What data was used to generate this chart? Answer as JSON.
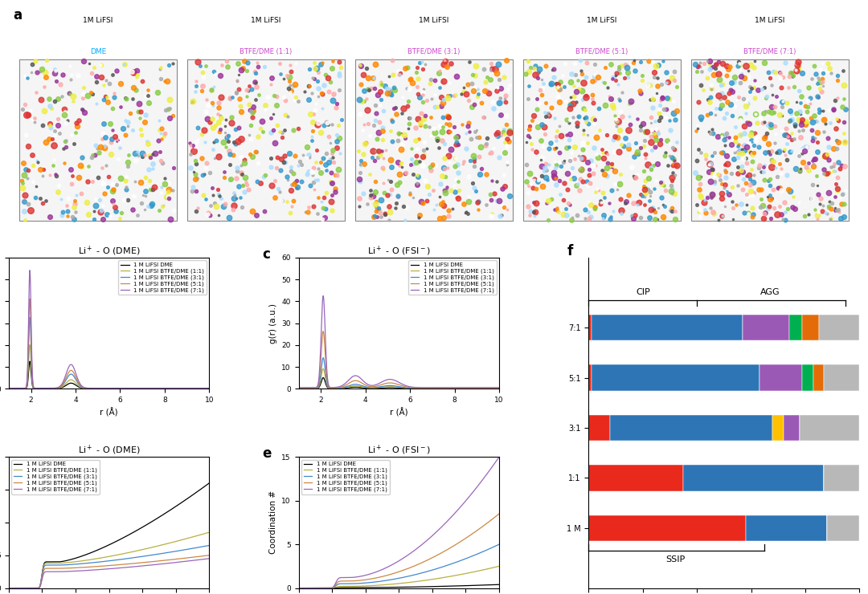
{
  "line_colors": [
    "#000000",
    "#b8b040",
    "#4488cc",
    "#cc8844",
    "#9966bb"
  ],
  "line_labels": [
    "1 M LiFSI DME",
    "1 M LiFSI BTFE/DME (1:1)",
    "1 M LiFSI BTFE/DME (3:1)",
    "1 M LiFSI BTFE/DME (5:1)",
    "1 M LiFSI BTFE/DME (7:1)"
  ],
  "dme_color": "#00aaff",
  "btfe_color": "#cc44cc",
  "bar_categories": [
    "7:1",
    "5:1",
    "3:1",
    "1:1",
    "1 M"
  ],
  "bar_data": {
    "3-0-0": [
      1,
      1,
      8,
      35,
      58
    ],
    "2-1-0": [
      56,
      62,
      60,
      52,
      30
    ],
    "2-2-0": [
      0,
      0,
      4,
      0,
      0
    ],
    "1-3-0": [
      17,
      16,
      6,
      0,
      0
    ],
    "0-4-0": [
      5,
      4,
      0,
      0,
      0
    ],
    "0-5-0": [
      6,
      4,
      0,
      0,
      0
    ],
    "Other": [
      15,
      13,
      22,
      13,
      12
    ]
  },
  "bar_colors": {
    "3-0-0": "#e8291c",
    "2-1-0": "#2e75b6",
    "2-2-0": "#ffc000",
    "1-3-0": "#9b59b6",
    "0-4-0": "#00b050",
    "0-5-0": "#e36c09",
    "Other": "#b8b8b8"
  },
  "label_colors": {
    "3-0-0": "#e8291c",
    "2-1-0": "#2e75b6",
    "2-2-0": "#c8a000",
    "1-3-0": "#9b59b6",
    "0-4-0": "#00a050",
    "0-5-0": "#e36c09"
  },
  "background_color": "#ffffff",
  "dme_peaks_b": [
    25,
    40,
    65,
    82,
    108
  ],
  "fsi_peaks_c": [
    5,
    9,
    14,
    26,
    42
  ],
  "cn_dme_plateau": [
    4.0,
    3.8,
    3.5,
    3.0,
    2.5
  ],
  "cn_dme_final": [
    16.0,
    8.5,
    6.5,
    5.0,
    4.5
  ],
  "cn_fsi_start": [
    0.05,
    0.2,
    0.5,
    0.8,
    1.2
  ],
  "cn_fsi_final": [
    0.4,
    2.5,
    5.0,
    8.5,
    15.0
  ]
}
